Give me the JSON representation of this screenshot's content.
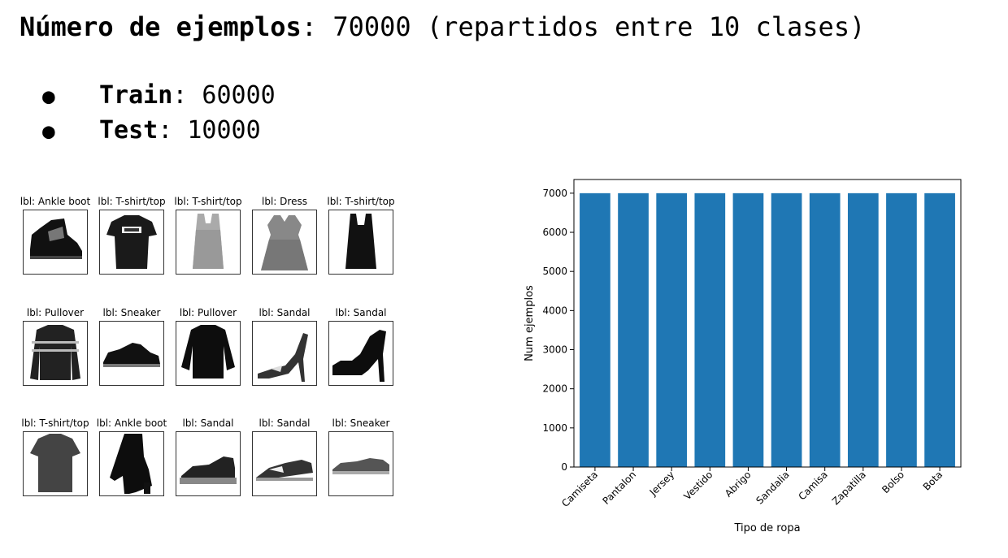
{
  "heading": {
    "bold": "Número de ejemplos",
    "rest": ": 70000 (repartidos entre 10 clases)"
  },
  "splits": [
    {
      "name": "Train",
      "value": ": 60000"
    },
    {
      "name": "Test",
      "value": ": 10000"
    }
  ],
  "bullet_glyph": "●",
  "samples": [
    {
      "label": "lbl: Ankle boot",
      "icon": "ankle-boot-icon"
    },
    {
      "label": "lbl: T-shirt/top",
      "icon": "tshirt-icon"
    },
    {
      "label": "lbl: T-shirt/top",
      "icon": "tank-top-icon"
    },
    {
      "label": "lbl: Dress",
      "icon": "dress-icon"
    },
    {
      "label": "lbl: T-shirt/top",
      "icon": "tank-top-dark-icon"
    },
    {
      "label": "lbl: Pullover",
      "icon": "striped-pullover-icon"
    },
    {
      "label": "lbl: Sneaker",
      "icon": "sneaker-icon"
    },
    {
      "label": "lbl: Pullover",
      "icon": "pullover-icon"
    },
    {
      "label": "lbl: Sandal",
      "icon": "high-heel-sandal-icon"
    },
    {
      "label": "lbl: Sandal",
      "icon": "platform-sandal-icon"
    },
    {
      "label": "lbl: T-shirt/top",
      "icon": "tshirt-long-icon"
    },
    {
      "label": "lbl: Ankle boot",
      "icon": "heeled-boot-icon"
    },
    {
      "label": "lbl: Sandal",
      "icon": "wedge-sandal-icon"
    },
    {
      "label": "lbl: Sandal",
      "icon": "flat-sandal-icon"
    },
    {
      "label": "lbl: Sneaker",
      "icon": "sneaker-low-icon"
    }
  ],
  "chart_data": {
    "type": "bar",
    "title": "",
    "xlabel": "Tipo de ropa",
    "ylabel": "Num ejemplos",
    "categories": [
      "Camiseta",
      "Pantalon",
      "Jersey",
      "Vestido",
      "Abrigo",
      "Sandalia",
      "Camisa",
      "Zapatilla",
      "Bolso",
      "Bota"
    ],
    "values": [
      7000,
      7000,
      7000,
      7000,
      7000,
      7000,
      7000,
      7000,
      7000,
      7000
    ],
    "ylim": [
      0,
      7350
    ],
    "yticks": [
      0,
      1000,
      2000,
      3000,
      4000,
      5000,
      6000,
      7000
    ],
    "grid": false,
    "bar_color": "#1f77b4"
  }
}
